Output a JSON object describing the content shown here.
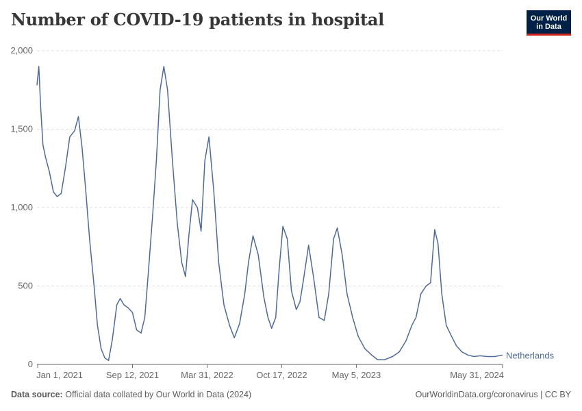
{
  "title": "Number of COVID-19 patients in hospital",
  "logo": {
    "line1": "Our World",
    "line2": "in Data"
  },
  "footer": {
    "source_label": "Data source:",
    "source_text": "Official data collated by Our World in Data (2024)",
    "right_text": "OurWorldinData.org/coronavirus | CC BY"
  },
  "colors": {
    "series": "#4c6a9c",
    "grid": "#dddddd",
    "axis": "#666666"
  },
  "chart_data": {
    "type": "line",
    "title": "Number of COVID-19 patients in hospital",
    "xlabel": "",
    "ylabel": "",
    "ylim": [
      0,
      2000
    ],
    "yticks": [
      0,
      500,
      1000,
      1500,
      2000
    ],
    "ytick_labels": [
      "0",
      "500",
      "1,000",
      "1,500",
      "2,000"
    ],
    "xlim": [
      "2020-12-30",
      "2024-05-31"
    ],
    "xticks": [
      {
        "date": "2021-01-01",
        "label": "Jan 1, 2021"
      },
      {
        "date": "2021-09-12",
        "label": "Sep 12, 2021"
      },
      {
        "date": "2022-03-31",
        "label": "Mar 31, 2022"
      },
      {
        "date": "2022-10-17",
        "label": "Oct 17, 2022"
      },
      {
        "date": "2023-05-05",
        "label": "May 5, 2023"
      },
      {
        "date": "2024-05-31",
        "label": "May 31, 2024"
      }
    ],
    "series": [
      {
        "name": "Netherlands",
        "x": [
          "2020-12-30",
          "2021-01-04",
          "2021-01-09",
          "2021-01-15",
          "2021-01-22",
          "2021-02-01",
          "2021-02-12",
          "2021-02-22",
          "2021-03-05",
          "2021-03-16",
          "2021-03-28",
          "2021-04-10",
          "2021-04-20",
          "2021-04-30",
          "2021-05-10",
          "2021-05-20",
          "2021-06-01",
          "2021-06-10",
          "2021-06-20",
          "2021-06-30",
          "2021-07-10",
          "2021-07-20",
          "2021-08-01",
          "2021-08-10",
          "2021-08-20",
          "2021-09-01",
          "2021-09-12",
          "2021-09-23",
          "2021-10-05",
          "2021-10-15",
          "2021-10-25",
          "2021-11-05",
          "2021-11-15",
          "2021-11-25",
          "2021-12-05",
          "2021-12-15",
          "2021-12-28",
          "2022-01-10",
          "2022-01-22",
          "2022-02-01",
          "2022-02-10",
          "2022-02-20",
          "2022-03-05",
          "2022-03-15",
          "2022-03-25",
          "2022-04-05",
          "2022-04-18",
          "2022-05-01",
          "2022-05-15",
          "2022-05-30",
          "2022-06-12",
          "2022-06-26",
          "2022-07-10",
          "2022-07-20",
          "2022-08-01",
          "2022-08-15",
          "2022-08-30",
          "2022-09-10",
          "2022-09-20",
          "2022-10-01",
          "2022-10-10",
          "2022-10-20",
          "2022-11-01",
          "2022-11-12",
          "2022-11-25",
          "2022-12-05",
          "2022-12-15",
          "2022-12-28",
          "2023-01-10",
          "2023-01-25",
          "2023-02-08",
          "2023-02-20",
          "2023-03-05",
          "2023-03-15",
          "2023-03-28",
          "2023-04-10",
          "2023-04-25",
          "2023-05-10",
          "2023-05-28",
          "2023-06-15",
          "2023-07-01",
          "2023-07-20",
          "2023-08-10",
          "2023-08-28",
          "2023-09-15",
          "2023-10-01",
          "2023-10-12",
          "2023-10-25",
          "2023-11-08",
          "2023-11-20",
          "2023-12-01",
          "2023-12-10",
          "2023-12-20",
          "2024-01-01",
          "2024-01-15",
          "2024-01-28",
          "2024-02-12",
          "2024-02-28",
          "2024-03-15",
          "2024-04-01",
          "2024-04-20",
          "2024-05-10",
          "2024-05-31"
        ],
        "values": [
          1780,
          1900,
          1640,
          1400,
          1320,
          1230,
          1100,
          1070,
          1090,
          1250,
          1450,
          1490,
          1580,
          1380,
          1100,
          800,
          500,
          250,
          100,
          40,
          25,
          160,
          380,
          420,
          380,
          360,
          330,
          220,
          200,
          300,
          600,
          950,
          1300,
          1750,
          1900,
          1750,
          1300,
          900,
          650,
          560,
          820,
          1050,
          1000,
          850,
          1300,
          1450,
          1100,
          650,
          380,
          250,
          170,
          260,
          450,
          650,
          820,
          700,
          430,
          300,
          230,
          300,
          600,
          880,
          800,
          470,
          350,
          400,
          550,
          760,
          560,
          300,
          280,
          450,
          800,
          870,
          700,
          450,
          300,
          180,
          100,
          60,
          30,
          30,
          50,
          80,
          150,
          250,
          300,
          450,
          500,
          520,
          860,
          770,
          450,
          250,
          180,
          120,
          80,
          60,
          50,
          55,
          50,
          50,
          60
        ]
      }
    ]
  }
}
